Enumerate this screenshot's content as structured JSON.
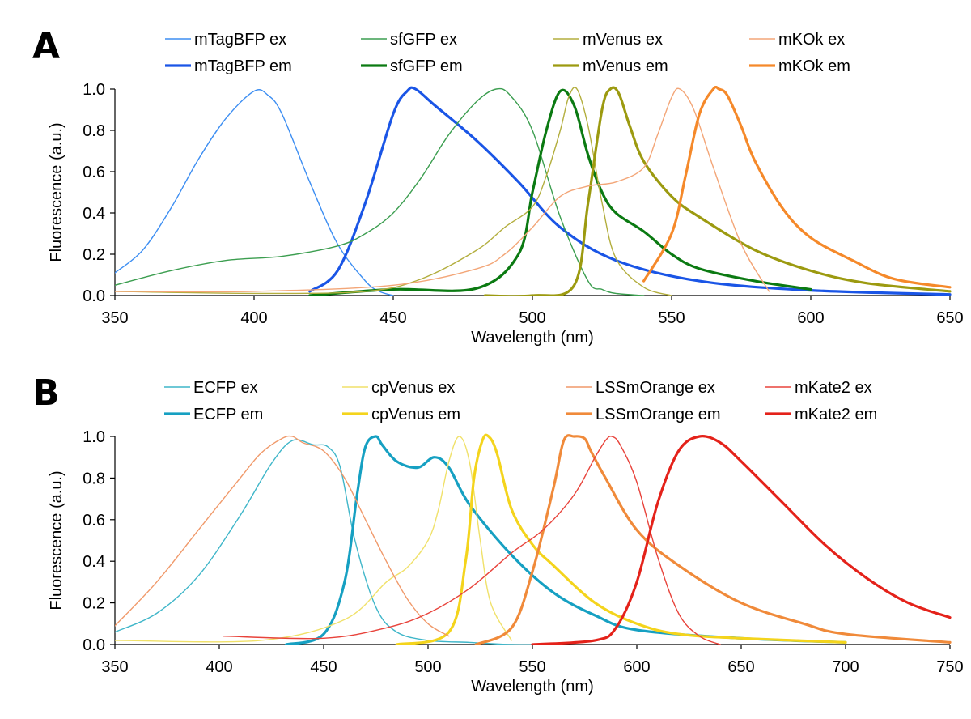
{
  "chart_data": [
    {
      "panel_label": "A",
      "type": "line",
      "xlabel": "Wavelength (nm)",
      "ylabel": "Fluorescence (a.u.)",
      "xlim": [
        350,
        650
      ],
      "ylim": [
        0,
        1.0
      ],
      "xticks": [
        "350",
        "400",
        "450",
        "500",
        "550",
        "600",
        "650"
      ],
      "yticks": [
        "0.0",
        "0.2",
        "0.4",
        "0.6",
        "0.8",
        "1.0"
      ],
      "legend_placement": "top",
      "series": [
        {
          "name": "mTagBFP ex",
          "color": "#3d8ef2",
          "width": "thin",
          "x": [
            350,
            360,
            370,
            380,
            390,
            400,
            405,
            410,
            420,
            430,
            440,
            445,
            450
          ],
          "y": [
            0.11,
            0.22,
            0.42,
            0.66,
            0.86,
            0.99,
            0.97,
            0.88,
            0.55,
            0.25,
            0.07,
            0.02,
            0.0
          ]
        },
        {
          "name": "mTagBFP em",
          "color": "#1a55e6",
          "width": "thick",
          "x": [
            420,
            430,
            440,
            450,
            455,
            458,
            465,
            480,
            495,
            510,
            530,
            560,
            600,
            650
          ],
          "y": [
            0.02,
            0.12,
            0.45,
            0.88,
            0.99,
            1.0,
            0.92,
            0.75,
            0.55,
            0.33,
            0.17,
            0.07,
            0.025,
            0.005
          ]
        },
        {
          "name": "sfGFP ex",
          "color": "#3c9e50",
          "width": "thin",
          "x": [
            350,
            370,
            390,
            410,
            430,
            440,
            450,
            460,
            470,
            480,
            487,
            492,
            500,
            510,
            520,
            525,
            530,
            540
          ],
          "y": [
            0.05,
            0.12,
            0.17,
            0.19,
            0.24,
            0.3,
            0.4,
            0.57,
            0.78,
            0.94,
            1.0,
            0.97,
            0.8,
            0.38,
            0.07,
            0.03,
            0.01,
            0.0
          ]
        },
        {
          "name": "sfGFP em",
          "color": "#0b7a12",
          "width": "thick",
          "x": [
            420,
            450,
            480,
            495,
            500,
            505,
            510,
            515,
            520,
            525,
            530,
            540,
            550,
            560,
            580,
            600
          ],
          "y": [
            0.0,
            0.03,
            0.035,
            0.2,
            0.5,
            0.8,
            0.99,
            0.92,
            0.68,
            0.5,
            0.4,
            0.31,
            0.2,
            0.13,
            0.07,
            0.03
          ]
        },
        {
          "name": "mVenus ex",
          "color": "#b3ae3e",
          "width": "thin",
          "x": [
            350,
            400,
            440,
            460,
            480,
            490,
            500,
            505,
            510,
            513,
            516,
            520,
            525,
            530,
            540,
            550
          ],
          "y": [
            0.02,
            0.01,
            0.02,
            0.08,
            0.22,
            0.33,
            0.43,
            0.58,
            0.8,
            0.96,
            1.0,
            0.82,
            0.45,
            0.18,
            0.04,
            0.0
          ]
        },
        {
          "name": "mVenus em",
          "color": "#9c9a10",
          "width": "thick",
          "x": [
            483,
            500,
            515,
            520,
            525,
            528,
            531,
            535,
            540,
            550,
            560,
            580,
            600,
            620,
            650
          ],
          "y": [
            0.0,
            0.0,
            0.05,
            0.45,
            0.9,
            1.0,
            0.98,
            0.82,
            0.65,
            0.48,
            0.38,
            0.22,
            0.12,
            0.06,
            0.02
          ]
        },
        {
          "name": "mKOk ex",
          "color": "#f3a678",
          "width": "thin",
          "x": [
            350,
            400,
            450,
            480,
            490,
            500,
            510,
            520,
            530,
            540,
            545,
            550,
            553,
            558,
            565,
            575,
            585
          ],
          "y": [
            0.02,
            0.02,
            0.05,
            0.13,
            0.2,
            0.33,
            0.48,
            0.53,
            0.55,
            0.62,
            0.78,
            0.96,
            1.0,
            0.9,
            0.62,
            0.25,
            0.02
          ]
        },
        {
          "name": "mKOk em",
          "color": "#f5892a",
          "width": "thick",
          "x": [
            540,
            550,
            555,
            560,
            565,
            567,
            570,
            575,
            580,
            590,
            600,
            615,
            630,
            650
          ],
          "y": [
            0.07,
            0.3,
            0.58,
            0.88,
            1.0,
            1.0,
            0.97,
            0.82,
            0.65,
            0.42,
            0.28,
            0.17,
            0.08,
            0.04
          ]
        }
      ]
    },
    {
      "panel_label": "B",
      "type": "line",
      "xlabel": "Wavelength (nm)",
      "ylabel": "Fluorescence (a.u.)",
      "xlim": [
        350,
        750
      ],
      "ylim": [
        0,
        1.0
      ],
      "xticks": [
        "350",
        "400",
        "450",
        "500",
        "550",
        "600",
        "650",
        "700",
        "750"
      ],
      "yticks": [
        "0.0",
        "0.2",
        "0.4",
        "0.6",
        "0.8",
        "1.0"
      ],
      "legend_placement": "top",
      "series": [
        {
          "name": "ECFP ex",
          "color": "#3fb6c9",
          "width": "thin",
          "x": [
            350,
            370,
            390,
            410,
            425,
            435,
            445,
            452,
            458,
            465,
            475,
            485,
            500,
            520,
            540,
            560
          ],
          "y": [
            0.06,
            0.15,
            0.33,
            0.62,
            0.87,
            0.98,
            0.96,
            0.95,
            0.85,
            0.5,
            0.18,
            0.06,
            0.02,
            0.01,
            0.0,
            0.0
          ]
        },
        {
          "name": "ECFP em",
          "color": "#16a0c2",
          "width": "thick",
          "x": [
            432,
            450,
            460,
            466,
            470,
            475,
            478,
            485,
            495,
            503,
            510,
            520,
            540,
            560,
            580,
            600,
            650,
            700
          ],
          "y": [
            0.0,
            0.05,
            0.3,
            0.72,
            0.95,
            1.0,
            0.96,
            0.88,
            0.85,
            0.9,
            0.85,
            0.67,
            0.43,
            0.25,
            0.14,
            0.07,
            0.03,
            0.01
          ]
        },
        {
          "name": "cpVenus ex",
          "color": "#f0e16a",
          "width": "thin",
          "x": [
            350,
            420,
            460,
            480,
            490,
            500,
            505,
            510,
            515,
            520,
            525,
            530,
            540
          ],
          "y": [
            0.02,
            0.02,
            0.12,
            0.3,
            0.37,
            0.5,
            0.65,
            0.88,
            1.0,
            0.87,
            0.5,
            0.2,
            0.02
          ]
        },
        {
          "name": "cpVenus em",
          "color": "#f4d41c",
          "width": "thick",
          "x": [
            485,
            510,
            518,
            522,
            526,
            529,
            533,
            540,
            550,
            560,
            580,
            600,
            620,
            650,
            700
          ],
          "y": [
            0.0,
            0.06,
            0.4,
            0.8,
            0.98,
            1.0,
            0.92,
            0.65,
            0.48,
            0.38,
            0.2,
            0.1,
            0.05,
            0.03,
            0.01
          ]
        },
        {
          "name": "LSSmOrange ex",
          "color": "#f0996a",
          "width": "thin",
          "x": [
            350,
            370,
            390,
            410,
            420,
            430,
            435,
            440,
            450,
            460,
            470,
            480,
            490,
            500,
            510
          ],
          "y": [
            0.09,
            0.3,
            0.55,
            0.8,
            0.92,
            0.99,
            1.0,
            0.97,
            0.93,
            0.8,
            0.6,
            0.4,
            0.22,
            0.1,
            0.04
          ]
        },
        {
          "name": "LSSmOrange em",
          "color": "#f08a3a",
          "width": "thick",
          "x": [
            523,
            540,
            550,
            560,
            565,
            570,
            575,
            578,
            585,
            600,
            620,
            650,
            680,
            700,
            750
          ],
          "y": [
            0.0,
            0.08,
            0.35,
            0.75,
            0.98,
            1.0,
            0.99,
            0.93,
            0.8,
            0.55,
            0.38,
            0.2,
            0.1,
            0.05,
            0.01
          ]
        },
        {
          "name": "mKate2 ex",
          "color": "#e8433b",
          "width": "thin",
          "x": [
            402,
            450,
            480,
            500,
            520,
            540,
            555,
            570,
            580,
            585,
            588,
            592,
            600,
            610,
            620,
            630,
            640
          ],
          "y": [
            0.04,
            0.03,
            0.08,
            0.15,
            0.27,
            0.44,
            0.55,
            0.72,
            0.9,
            0.98,
            1.0,
            0.96,
            0.78,
            0.42,
            0.15,
            0.04,
            0.0
          ]
        },
        {
          "name": "mKate2 em",
          "color": "#e4221a",
          "width": "thick",
          "x": [
            550,
            580,
            590,
            600,
            610,
            620,
            630,
            640,
            650,
            670,
            690,
            710,
            730,
            750
          ],
          "y": [
            0.0,
            0.02,
            0.08,
            0.3,
            0.68,
            0.93,
            1.0,
            0.97,
            0.88,
            0.68,
            0.48,
            0.32,
            0.2,
            0.13
          ]
        }
      ]
    }
  ]
}
